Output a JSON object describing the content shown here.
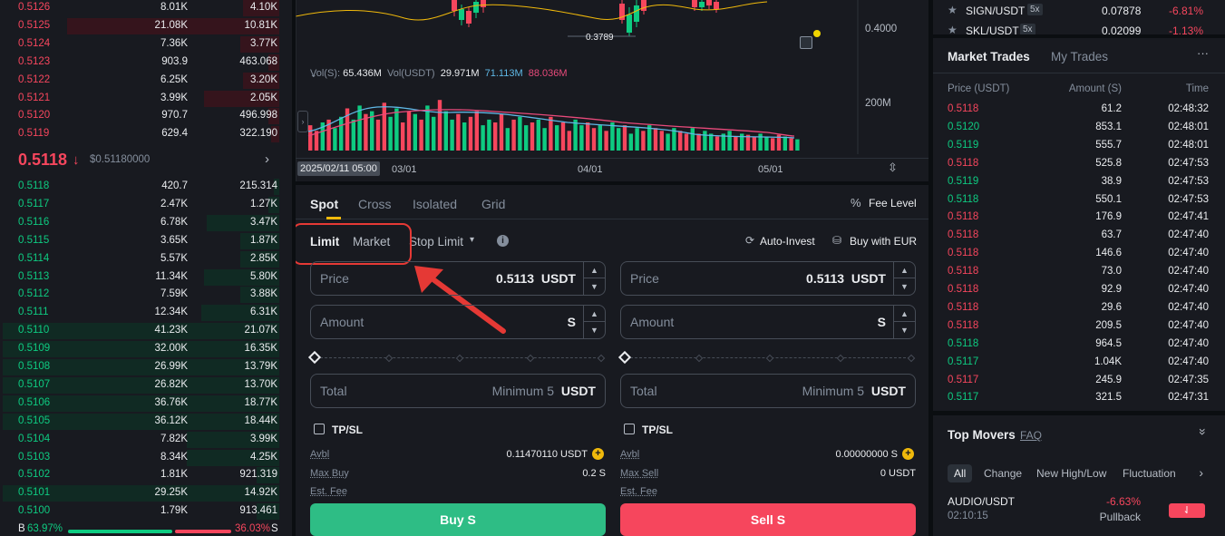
{
  "orderbook": {
    "asks": [
      {
        "price": "0.5126",
        "amount": "8.01K",
        "total": "4.10K",
        "depth": 0.13
      },
      {
        "price": "0.5125",
        "amount": "21.08K",
        "total": "10.81K",
        "depth": 0.76
      },
      {
        "price": "0.5124",
        "amount": "7.36K",
        "total": "3.77K",
        "depth": 0.14
      },
      {
        "price": "0.5123",
        "amount": "903.9",
        "total": "463.068",
        "depth": 0.04
      },
      {
        "price": "0.5122",
        "amount": "6.25K",
        "total": "3.20K",
        "depth": 0.13
      },
      {
        "price": "0.5121",
        "amount": "3.99K",
        "total": "2.05K",
        "depth": 0.27
      },
      {
        "price": "0.5120",
        "amount": "970.7",
        "total": "496.998",
        "depth": 0.04
      },
      {
        "price": "0.5119",
        "amount": "629.4",
        "total": "322.190",
        "depth": 0.03
      }
    ],
    "last_price": "0.5118",
    "last_arrow": "↓",
    "last_usd": "$0.51180000",
    "more_arrow": "›",
    "bids": [
      {
        "price": "0.5118",
        "amount": "420.7",
        "total": "215.314",
        "depth": 0.02
      },
      {
        "price": "0.5117",
        "amount": "2.47K",
        "total": "1.27K",
        "depth": 0.04
      },
      {
        "price": "0.5116",
        "amount": "6.78K",
        "total": "3.47K",
        "depth": 0.26
      },
      {
        "price": "0.5115",
        "amount": "3.65K",
        "total": "1.87K",
        "depth": 0.14
      },
      {
        "price": "0.5114",
        "amount": "5.57K",
        "total": "2.85K",
        "depth": 0.14
      },
      {
        "price": "0.5113",
        "amount": "11.34K",
        "total": "5.80K",
        "depth": 0.27
      },
      {
        "price": "0.5112",
        "amount": "7.59K",
        "total": "3.88K",
        "depth": 0.14
      },
      {
        "price": "0.5111",
        "amount": "12.34K",
        "total": "6.31K",
        "depth": 0.28
      },
      {
        "price": "0.5110",
        "amount": "41.23K",
        "total": "21.07K",
        "depth": 0.99
      },
      {
        "price": "0.5109",
        "amount": "32.00K",
        "total": "16.35K",
        "depth": 0.99
      },
      {
        "price": "0.5108",
        "amount": "26.99K",
        "total": "13.79K",
        "depth": 0.99
      },
      {
        "price": "0.5107",
        "amount": "26.82K",
        "total": "13.70K",
        "depth": 0.99
      },
      {
        "price": "0.5106",
        "amount": "36.76K",
        "total": "18.77K",
        "depth": 0.99
      },
      {
        "price": "0.5105",
        "amount": "36.12K",
        "total": "18.44K",
        "depth": 0.99
      },
      {
        "price": "0.5104",
        "amount": "7.82K",
        "total": "3.99K",
        "depth": 0.33
      },
      {
        "price": "0.5103",
        "amount": "8.34K",
        "total": "4.25K",
        "depth": 0.33
      },
      {
        "price": "0.5102",
        "amount": "1.81K",
        "total": "921.319",
        "depth": 0.08
      },
      {
        "price": "0.5101",
        "amount": "29.25K",
        "total": "14.92K",
        "depth": 0.99
      },
      {
        "price": "0.5100",
        "amount": "1.79K",
        "total": "913.461",
        "depth": 0.08
      }
    ],
    "ratio_b_label": "B",
    "ratio_b": "63.97%",
    "ratio_s": "36.03%",
    "ratio_s_label": "S",
    "buy_fraction": 0.6397
  },
  "chart": {
    "price_label": "0.3789",
    "axis_price": "0.4000",
    "axis_vol": "200M",
    "vol_label": "Vol(S):",
    "vol_value": "65.436M",
    "vol_usdt_label": "Vol(USDT)",
    "vol_usdt_value": "29.971M",
    "ma1": "71.113M",
    "ma2": "88.036M",
    "date_cursor": "2025/02/11 05:00",
    "date_1": "03/01",
    "date_2": "04/01",
    "date_3": "05/01",
    "vol_bars": [
      0.45,
      0.35,
      0.5,
      0.55,
      0.4,
      0.6,
      0.75,
      0.55,
      0.8,
      0.65,
      0.7,
      0.55,
      0.85,
      0.6,
      0.75,
      0.5,
      0.7,
      0.65,
      0.55,
      0.8,
      0.6,
      0.9,
      0.7,
      0.55,
      0.65,
      0.5,
      0.6,
      0.7,
      0.45,
      0.55,
      0.5,
      0.65,
      0.4,
      0.55,
      0.6,
      0.45,
      0.5,
      0.55,
      0.4,
      0.6,
      0.45,
      0.5,
      0.35,
      0.55,
      0.45,
      0.5,
      0.4,
      0.45,
      0.35,
      0.5,
      0.4,
      0.45,
      0.3,
      0.4,
      0.35,
      0.45,
      0.4,
      0.35,
      0.3,
      0.4,
      0.35,
      0.3,
      0.4,
      0.3,
      0.35,
      0.3,
      0.25,
      0.3,
      0.35,
      0.25,
      0.3,
      0.28,
      0.25,
      0.3,
      0.25,
      0.22,
      0.28,
      0.25,
      0.22,
      0.2
    ]
  },
  "trade": {
    "tabs": [
      "Spot",
      "Cross",
      "Isolated",
      "Grid"
    ],
    "fee_level": "Fee Level",
    "order_types": [
      "Limit",
      "Market",
      "Stop Limit"
    ],
    "auto_invest": "Auto-Invest",
    "buy_eur": "Buy with EUR",
    "buy": {
      "price_label": "Price",
      "price_value": "0.5113",
      "price_unit": "USDT",
      "amount_label": "Amount",
      "amount_unit": "S",
      "total_label": "Total",
      "total_placeholder": "Minimum 5",
      "total_unit": "USDT",
      "tpsl": "TP/SL",
      "avbl_label": "Avbl",
      "avbl_value": "0.11470110 USDT",
      "max_label": "Max Buy",
      "max_value": "0.2 S",
      "fee_label": "Est. Fee",
      "button": "Buy S"
    },
    "sell": {
      "price_label": "Price",
      "price_value": "0.5113",
      "price_unit": "USDT",
      "amount_label": "Amount",
      "amount_unit": "S",
      "total_label": "Total",
      "total_placeholder": "Minimum 5",
      "total_unit": "USDT",
      "tpsl": "TP/SL",
      "avbl_label": "Avbl",
      "avbl_value": "0.00000000 S",
      "max_label": "Max Sell",
      "max_value": "0 USDT",
      "fee_label": "Est. Fee",
      "button": "Sell S"
    }
  },
  "favorites": [
    {
      "pair": "SIGN/USDT",
      "lev": "5x",
      "price": "0.07878",
      "change": "-6.81%"
    },
    {
      "pair": "SKL/USDT",
      "lev": "5x",
      "price": "0.02099",
      "change": "-1.13%"
    }
  ],
  "market_trades": {
    "tabs": [
      "Market Trades",
      "My Trades"
    ],
    "more": "···",
    "headers": [
      "Price (USDT)",
      "Amount (S)",
      "Time"
    ],
    "rows": [
      {
        "price": "0.5118",
        "amount": "61.2",
        "time": "02:48:32",
        "side": "sell"
      },
      {
        "price": "0.5120",
        "amount": "853.1",
        "time": "02:48:01",
        "side": "buy"
      },
      {
        "price": "0.5119",
        "amount": "555.7",
        "time": "02:48:01",
        "side": "buy"
      },
      {
        "price": "0.5118",
        "amount": "525.8",
        "time": "02:47:53",
        "side": "sell"
      },
      {
        "price": "0.5119",
        "amount": "38.9",
        "time": "02:47:53",
        "side": "buy"
      },
      {
        "price": "0.5118",
        "amount": "550.1",
        "time": "02:47:53",
        "side": "buy"
      },
      {
        "price": "0.5118",
        "amount": "176.9",
        "time": "02:47:41",
        "side": "sell"
      },
      {
        "price": "0.5118",
        "amount": "63.7",
        "time": "02:47:40",
        "side": "sell"
      },
      {
        "price": "0.5118",
        "amount": "146.6",
        "time": "02:47:40",
        "side": "sell"
      },
      {
        "price": "0.5118",
        "amount": "73.0",
        "time": "02:47:40",
        "side": "sell"
      },
      {
        "price": "0.5118",
        "amount": "92.9",
        "time": "02:47:40",
        "side": "sell"
      },
      {
        "price": "0.5118",
        "amount": "29.6",
        "time": "02:47:40",
        "side": "sell"
      },
      {
        "price": "0.5118",
        "amount": "209.5",
        "time": "02:47:40",
        "side": "sell"
      },
      {
        "price": "0.5118",
        "amount": "964.5",
        "time": "02:47:40",
        "side": "buy"
      },
      {
        "price": "0.5117",
        "amount": "1.04K",
        "time": "02:47:40",
        "side": "buy"
      },
      {
        "price": "0.5117",
        "amount": "245.9",
        "time": "02:47:35",
        "side": "sell"
      },
      {
        "price": "0.5117",
        "amount": "321.5",
        "time": "02:47:31",
        "side": "buy"
      }
    ]
  },
  "top_movers": {
    "title": "Top Movers",
    "faq": "FAQ",
    "collapse": "»",
    "filters": [
      "All",
      "Change",
      "New High/Low",
      "Fluctuation"
    ],
    "filter_next": "›",
    "item": {
      "pair": "AUDIO/USDT",
      "time": "02:10:15",
      "change": "-6.63%",
      "tag": "Pullback",
      "badge": "⇃"
    }
  },
  "colors": {
    "red": "#f6465d",
    "green": "#0ecb81",
    "yellow": "#f0b90b",
    "annotation": "#e53935"
  }
}
